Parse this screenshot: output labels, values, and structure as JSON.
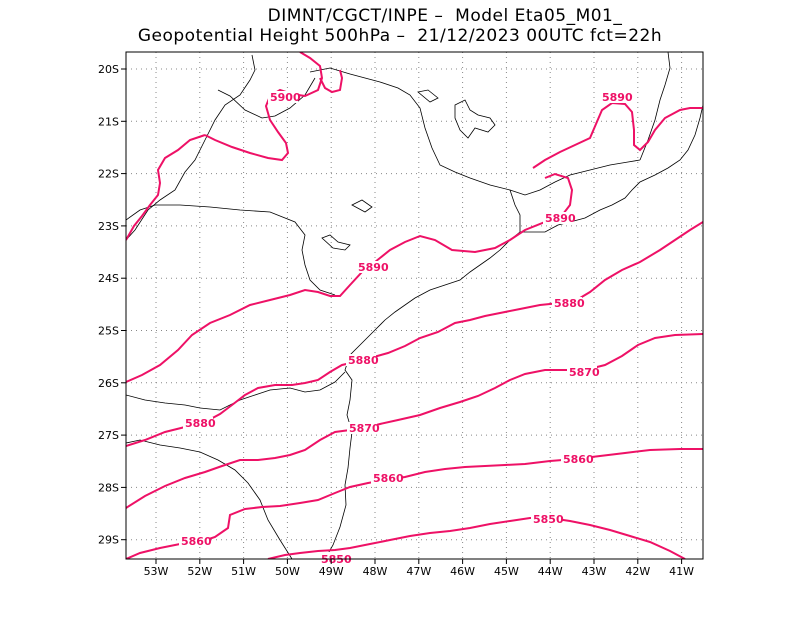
{
  "header": {
    "line1": "DIMNT/CGCT/INPE –  Model Eta05_M01_",
    "line2": "Geopotential Height 500hPa –  21/12/2023 00UTC fct=22h"
  },
  "colors": {
    "contour": "#ee1166",
    "coastline": "#000000",
    "grid": "#888888"
  },
  "axes": {
    "lon_ticks": [
      "53W",
      "52W",
      "51W",
      "50W",
      "49W",
      "48W",
      "47W",
      "46W",
      "45W",
      "44W",
      "43W",
      "42W",
      "41W"
    ],
    "lat_ticks": [
      "20S",
      "21S",
      "22S",
      "23S",
      "24S",
      "25S",
      "26S",
      "27S",
      "28S",
      "29S"
    ]
  },
  "contours": [
    {
      "value": 5900,
      "labels": [
        "5900"
      ]
    },
    {
      "value": 5890,
      "labels": [
        "5890",
        "5890",
        "5890"
      ]
    },
    {
      "value": 5880,
      "labels": [
        "5880",
        "5880",
        "5880"
      ]
    },
    {
      "value": 5870,
      "labels": [
        "5870",
        "5870"
      ]
    },
    {
      "value": 5860,
      "labels": [
        "5860",
        "5860",
        "5860"
      ]
    },
    {
      "value": 5850,
      "labels": [
        "5850",
        "5850"
      ]
    }
  ]
}
